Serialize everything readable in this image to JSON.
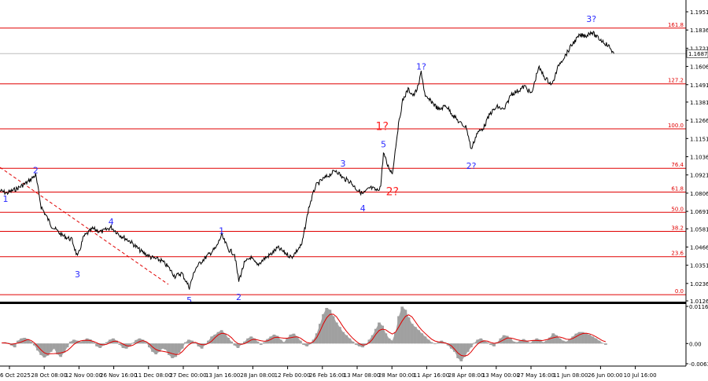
{
  "chart_data": [
    {
      "type": "line",
      "title": "",
      "ylim": [
        1.0126,
        1.1951
      ],
      "price_ticks": [
        "1.1951",
        "1.1836",
        "1.1721",
        "1.1606",
        "1.1491",
        "1.1381",
        "1.1266",
        "1.1151",
        "1.1036",
        "1.0921",
        "1.0806",
        "1.0691",
        "1.0581",
        "1.0466",
        "1.0351",
        "1.0236",
        "1.0126"
      ],
      "date_ticks": [
        "6 Oct 2025",
        "28 Oct 08:00",
        "12 Nov 00:00",
        "26 Nov 16:00",
        "11 Dec 08:00",
        "27 Dec 00:00",
        "13 Jan 16:00",
        "28 Jan 08:00",
        "12 Feb 00:00",
        "26 Feb 16:00",
        "13 Mar 08:00",
        "28 Mar 00:00",
        "11 Apr 16:00",
        "28 Apr 08:00",
        "13 May 00:00",
        "27 May 16:00",
        "11 Jun 08:00",
        "26 Jun 00:00",
        "10 Jul 16:00"
      ],
      "current_price": "1.1687",
      "fib_levels": [
        {
          "label": "161.8",
          "value": 1.1848
        },
        {
          "label": "127.2",
          "value": 1.1496
        },
        {
          "label": "100.0",
          "value": 1.1212
        },
        {
          "label": "76.4",
          "value": 1.0963
        },
        {
          "label": "61.8",
          "value": 1.0813
        },
        {
          "label": "50.0",
          "value": 1.0685
        },
        {
          "label": "38.2",
          "value": 1.0565
        },
        {
          "label": "23.6",
          "value": 1.0405
        },
        {
          "label": "0.0",
          "value": 1.0165
        }
      ],
      "wave_labels": [
        {
          "text": "1",
          "color": "#2a2aff",
          "t": 0.008,
          "price": 1.0771
        },
        {
          "text": "2",
          "color": "#2a2aff",
          "t": 0.052,
          "price": 1.0951
        },
        {
          "text": "3",
          "color": "#2a2aff",
          "t": 0.113,
          "price": 1.0295
        },
        {
          "text": "4",
          "color": "#2a2aff",
          "t": 0.162,
          "price": 1.0627
        },
        {
          "text": "5",
          "color": "#2a2aff",
          "t": 0.276,
          "price": 1.0131
        },
        {
          "text": "1",
          "color": "#2a2aff",
          "t": 0.323,
          "price": 1.0569
        },
        {
          "text": "2",
          "color": "#2a2aff",
          "t": 0.348,
          "price": 1.0151
        },
        {
          "text": "3",
          "color": "#2a2aff",
          "t": 0.5,
          "price": 1.0993
        },
        {
          "text": "4",
          "color": "#2a2aff",
          "t": 0.529,
          "price": 1.0711
        },
        {
          "text": "5",
          "color": "#2a2aff",
          "t": 0.559,
          "price": 1.1115
        },
        {
          "text": "1?",
          "color": "#ff2020",
          "t": 0.557,
          "price": 1.1225
        },
        {
          "text": "2?",
          "color": "#ff2020",
          "t": 0.572,
          "price": 1.0813
        },
        {
          "text": "1?",
          "color": "#2a2aff",
          "t": 0.614,
          "price": 1.1606
        },
        {
          "text": "2?",
          "color": "#2a2aff",
          "t": 0.687,
          "price": 1.0979
        },
        {
          "text": "3?",
          "color": "#2a2aff",
          "t": 0.862,
          "price": 1.1907
        }
      ],
      "price_series": {
        "t": [
          0.0,
          0.01,
          0.025,
          0.04,
          0.052,
          0.06,
          0.075,
          0.09,
          0.105,
          0.113,
          0.122,
          0.135,
          0.148,
          0.162,
          0.175,
          0.19,
          0.205,
          0.22,
          0.235,
          0.245,
          0.255,
          0.265,
          0.276,
          0.285,
          0.295,
          0.305,
          0.315,
          0.323,
          0.333,
          0.342,
          0.348,
          0.356,
          0.365,
          0.375,
          0.385,
          0.395,
          0.405,
          0.415,
          0.425,
          0.44,
          0.45,
          0.46,
          0.47,
          0.48,
          0.49,
          0.5,
          0.51,
          0.52,
          0.529,
          0.54,
          0.55,
          0.555,
          0.559,
          0.565,
          0.572,
          0.58,
          0.587,
          0.595,
          0.603,
          0.61,
          0.614,
          0.62,
          0.63,
          0.64,
          0.65,
          0.66,
          0.67,
          0.68,
          0.687,
          0.695,
          0.705,
          0.715,
          0.725,
          0.735,
          0.745,
          0.755,
          0.765,
          0.775,
          0.785,
          0.795,
          0.805,
          0.815,
          0.825,
          0.835,
          0.845,
          0.855,
          0.862,
          0.87,
          0.88,
          0.888,
          0.895
        ],
        "price": [
          1.0821,
          1.0806,
          1.0835,
          1.0875,
          1.0921,
          1.0721,
          1.0601,
          1.0541,
          1.0511,
          1.0401,
          1.0531,
          1.0581,
          1.0561,
          1.0591,
          1.0541,
          1.0501,
          1.0441,
          1.0401,
          1.0381,
          1.0341,
          1.0281,
          1.0301,
          1.0211,
          1.0331,
          1.0381,
          1.0421,
          1.0461,
          1.0541,
          1.0451,
          1.0421,
          1.0251,
          1.0361,
          1.0401,
          1.0351,
          1.0391,
          1.0421,
          1.0461,
          1.0431,
          1.0401,
          1.0481,
          1.0711,
          1.0851,
          1.0891,
          1.0921,
          1.0951,
          1.0901,
          1.0881,
          1.0831,
          1.0801,
          1.0841,
          1.0821,
          1.0851,
          1.1061,
          1.0981,
          1.0931,
          1.1211,
          1.1391,
          1.1461,
          1.1421,
          1.1481,
          1.1576,
          1.1411,
          1.1381,
          1.1331,
          1.1361,
          1.1301,
          1.1251,
          1.1221,
          1.1081,
          1.1181,
          1.1221,
          1.1311,
          1.1351,
          1.1331,
          1.1431,
          1.1451,
          1.1481,
          1.1431,
          1.1601,
          1.1531,
          1.1491,
          1.1621,
          1.1681,
          1.1751,
          1.1801,
          1.1801,
          1.1826,
          1.1791,
          1.1761,
          1.1731,
          1.1687
        ]
      }
    },
    {
      "type": "area",
      "title": "",
      "ylim": [
        -0.00635,
        0.01168
      ],
      "y_ticks": [
        "0.01168",
        "0.00",
        "-0.00635"
      ],
      "histogram": [
        0.0,
        0.0004,
        0.0002,
        -0.0006,
        -0.0012,
        0.0009,
        0.0016,
        0.0018,
        0.0014,
        0.0006,
        -0.0006,
        -0.0022,
        -0.0036,
        -0.0044,
        -0.0038,
        -0.0026,
        -0.0016,
        -0.0034,
        -0.0042,
        -0.0029,
        -0.0012,
        0.0006,
        0.0012,
        0.0009,
        0.0005,
        0.0009,
        0.0016,
        0.0013,
        0.0004,
        -0.0009,
        -0.0014,
        -0.0006,
        0.0004,
        0.0012,
        0.0016,
        0.0009,
        -0.0004,
        -0.0014,
        -0.0016,
        -0.0009,
        0.0002,
        0.0011,
        0.0016,
        0.0012,
        0.0004,
        -0.0012,
        -0.0026,
        -0.0034,
        -0.0026,
        -0.0016,
        -0.0019,
        -0.0036,
        -0.0046,
        -0.0042,
        -0.0029,
        -0.0016,
        0.0004,
        0.0012,
        0.0009,
        0.0002,
        -0.0009,
        -0.0016,
        -0.0004,
        0.0009,
        0.0022,
        0.0028,
        0.0036,
        0.0042,
        0.0032,
        0.0018,
        0.0006,
        -0.0006,
        -0.0014,
        -0.0004,
        0.0006,
        0.0016,
        0.0022,
        0.0016,
        0.0006,
        -0.0004,
        0.0004,
        0.0014,
        0.0022,
        0.0028,
        0.0024,
        0.0012,
        0.0004,
        0.0016,
        0.0028,
        0.0031,
        0.0022,
        0.0009,
        -0.0004,
        -0.0009,
        -0.0002,
        0.0012,
        0.0032,
        0.0062,
        0.0092,
        0.0112,
        0.0106,
        0.0086,
        0.0066,
        0.0052,
        0.0036,
        0.0026,
        0.0016,
        0.0006,
        -0.0004,
        -0.0009,
        -0.0012,
        -0.0004,
        0.0012,
        0.0026,
        0.0046,
        0.0066,
        0.0056,
        0.0032,
        0.0016,
        0.0009,
        0.0036,
        0.0086,
        0.0116,
        0.0106,
        0.0082,
        0.0062,
        0.0052,
        0.0042,
        0.0032,
        0.0022,
        0.0012,
        0.0004,
        -0.0002,
        0.0004,
        0.0009,
        0.0004,
        -0.0006,
        -0.0016,
        -0.0026,
        -0.0046,
        -0.0056,
        -0.0042,
        -0.0026,
        -0.0012,
        0.0002,
        0.0012,
        0.0016,
        0.0009,
        0.0004,
        -0.0004,
        -0.0009,
        0.0004,
        0.0016,
        0.0026,
        0.0024,
        0.0016,
        0.0006,
        0.0004,
        0.0009,
        0.0014,
        0.0009,
        0.0002,
        0.0009,
        0.0016,
        0.0012,
        0.0004,
        0.0009,
        0.0019,
        0.0032,
        0.0026,
        0.0016,
        0.0009,
        0.0006,
        0.0012,
        0.0022,
        0.0031,
        0.0036,
        0.0036,
        0.0032,
        0.0028,
        0.0022,
        0.0016,
        0.0009,
        0.0002,
        -0.0004
      ]
    }
  ]
}
